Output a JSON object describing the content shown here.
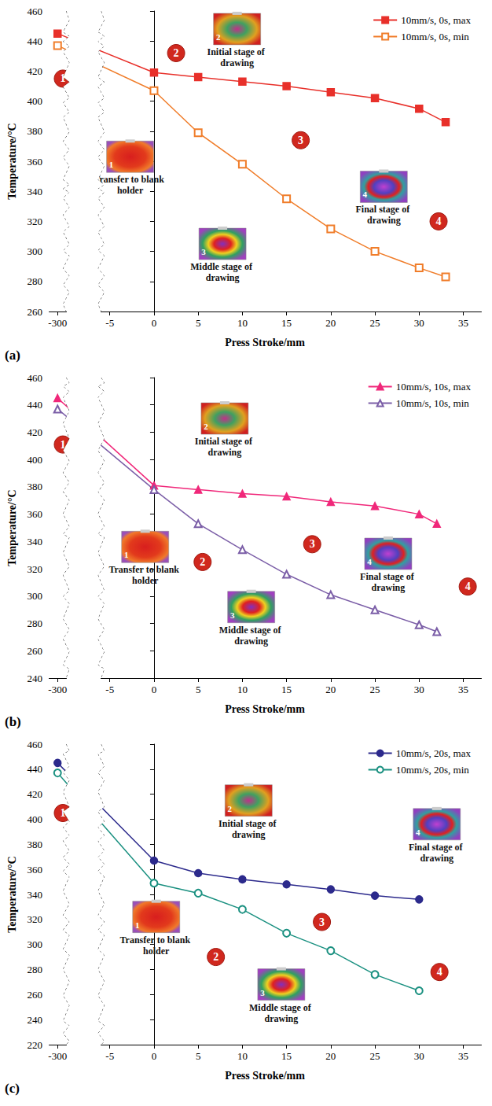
{
  "chart_data": [
    {
      "type": "line",
      "label": "(a)",
      "x_title": "Press Stroke/mm",
      "y_title": "Temperature/°C",
      "x": [
        -300,
        0,
        5,
        10,
        15,
        20,
        25,
        30,
        33
      ],
      "xlim": [
        -301,
        37
      ],
      "xticks": [
        -300,
        -5,
        0,
        5,
        10,
        15,
        20,
        25,
        30,
        35
      ],
      "x_break": [
        -299,
        -6
      ],
      "ylim": [
        260,
        460
      ],
      "yticks": [
        260,
        280,
        300,
        320,
        340,
        360,
        380,
        400,
        420,
        440,
        460
      ],
      "grid": false,
      "legend": "upper right",
      "series": [
        {
          "name": "10mm/s, 0s, max",
          "color": "#e8302a",
          "marker": "square",
          "values": [
            445,
            419,
            416,
            413,
            410,
            406,
            402,
            395,
            386
          ]
        },
        {
          "name": "10mm/s, 0s, min",
          "color": "#f07d2a",
          "marker": "open-square",
          "values": [
            437,
            407,
            379,
            358,
            335,
            315,
            300,
            289,
            283
          ]
        }
      ],
      "annotations": [
        {
          "text": "1",
          "x": -299.4,
          "y": 415
        },
        {
          "text": "2",
          "x": 2.5,
          "y": 432
        },
        {
          "text": "3",
          "x": 16.6,
          "y": 374
        },
        {
          "text": "4",
          "x": 32.2,
          "y": 320
        }
      ],
      "insets": [
        {
          "label": "1",
          "caption": "Transfer to blank holder",
          "x": -2.7,
          "y": 363
        },
        {
          "label": "2",
          "caption": "Initial stage of drawing",
          "x": 9.4,
          "y": 448
        },
        {
          "label": "3",
          "caption": "Middle stage of drawing",
          "x": 7.75,
          "y": 305
        },
        {
          "label": "4",
          "caption": "Final stage of drawing",
          "x": 26,
          "y": 343
        }
      ]
    },
    {
      "type": "line",
      "label": "(b)",
      "x_title": "Press Stroke/mm",
      "y_title": "Temperature/°C",
      "x": [
        -300,
        0,
        5,
        10,
        15,
        20,
        25,
        30,
        32
      ],
      "xlim": [
        -301,
        37
      ],
      "xticks": [
        -300,
        -5,
        0,
        5,
        10,
        15,
        20,
        25,
        30,
        35
      ],
      "x_break": [
        -299,
        -6
      ],
      "ylim": [
        240,
        460
      ],
      "yticks": [
        240,
        260,
        280,
        300,
        320,
        340,
        360,
        380,
        400,
        420,
        440,
        460
      ],
      "grid": false,
      "legend": "upper right",
      "series": [
        {
          "name": "10mm/s, 10s, max",
          "color": "#f0287a",
          "marker": "triangle",
          "values": [
            445,
            381,
            378,
            375,
            373,
            369,
            366,
            360,
            353
          ]
        },
        {
          "name": "10mm/s, 10s, min",
          "color": "#7b5ea7",
          "marker": "open-triangle",
          "values": [
            437,
            378,
            353,
            334,
            316,
            301,
            290,
            279,
            274
          ]
        }
      ],
      "annotations": [
        {
          "text": "1",
          "x": -299.4,
          "y": 411
        },
        {
          "text": "2",
          "x": 5.5,
          "y": 325
        },
        {
          "text": "3",
          "x": 17.9,
          "y": 338
        },
        {
          "text": "4",
          "x": 35.5,
          "y": 307
        }
      ],
      "insets": [
        {
          "label": "1",
          "caption": "Transfer to blank holder",
          "x": -1,
          "y": 336
        },
        {
          "label": "2",
          "caption": "Initial stage of drawing",
          "x": 8,
          "y": 430
        },
        {
          "label": "3",
          "caption": "Middle stage of drawing",
          "x": 11,
          "y": 292
        },
        {
          "label": "4",
          "caption": "Final stage of drawing",
          "x": 26.5,
          "y": 331
        }
      ]
    },
    {
      "type": "line",
      "label": "(c)",
      "x_title": "Press Stroke/mm",
      "y_title": "Temperature/°C",
      "x": [
        -300,
        0,
        5,
        10,
        15,
        20,
        25,
        30
      ],
      "xlim": [
        -301,
        37
      ],
      "xticks": [
        -300,
        -5,
        0,
        5,
        10,
        15,
        20,
        25,
        30,
        35
      ],
      "x_break": [
        -299,
        -6
      ],
      "ylim": [
        220,
        460
      ],
      "yticks": [
        220,
        240,
        260,
        280,
        300,
        320,
        340,
        360,
        380,
        400,
        420,
        440,
        460
      ],
      "grid": false,
      "legend": "upper right",
      "series": [
        {
          "name": "10mm/s, 20s, max",
          "color": "#2c2a8c",
          "marker": "circle",
          "values": [
            445,
            367,
            357,
            352,
            348,
            344,
            339,
            336
          ]
        },
        {
          "name": "10mm/s, 20s, min",
          "color": "#1a9080",
          "marker": "open-circle",
          "values": [
            437,
            349,
            341,
            328,
            309,
            295,
            276,
            263
          ]
        }
      ],
      "annotations": [
        {
          "text": "1",
          "x": -299.4,
          "y": 405
        },
        {
          "text": "2",
          "x": 7,
          "y": 290
        },
        {
          "text": "3",
          "x": 19,
          "y": 318
        },
        {
          "text": "4",
          "x": 32.3,
          "y": 278
        }
      ],
      "insets": [
        {
          "label": "1",
          "caption": "Transfer to blank holder",
          "x": 0.25,
          "y": 322
        },
        {
          "label": "2",
          "caption": "Initial stage of drawing",
          "x": 10.7,
          "y": 415
        },
        {
          "label": "3",
          "caption": "Middle stage of drawing",
          "x": 14.4,
          "y": 268
        },
        {
          "label": "4",
          "caption": "Final stage of drawing",
          "x": 32,
          "y": 396
        }
      ]
    }
  ]
}
